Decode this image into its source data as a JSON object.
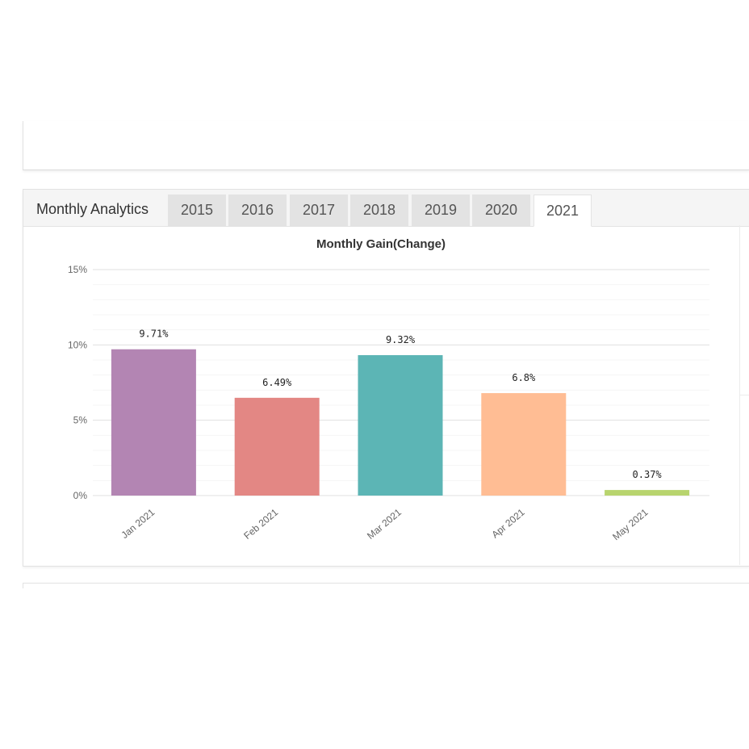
{
  "tabs": {
    "title": "Monthly Analytics",
    "years": [
      "2015",
      "2016",
      "2017",
      "2018",
      "2019",
      "2020",
      "2021"
    ],
    "active": "2021"
  },
  "chart_data": {
    "type": "bar",
    "title": "Monthly Gain(Change)",
    "categories": [
      "Jan 2021",
      "Feb 2021",
      "Mar 2021",
      "Apr 2021",
      "May 2021"
    ],
    "values": [
      9.71,
      6.49,
      9.32,
      6.8,
      0.37
    ],
    "data_labels": [
      "9.71%",
      "6.49%",
      "9.32%",
      "6.8%",
      "0.37%"
    ],
    "colors": [
      "#b385b3",
      "#e38784",
      "#5cb5b5",
      "#ffbd94",
      "#b8d46e"
    ],
    "ylim": [
      0,
      15
    ],
    "yticks": [
      0,
      5,
      10,
      15
    ],
    "ytick_labels": [
      "0%",
      "5%",
      "10%",
      "15%"
    ],
    "grid": true
  }
}
